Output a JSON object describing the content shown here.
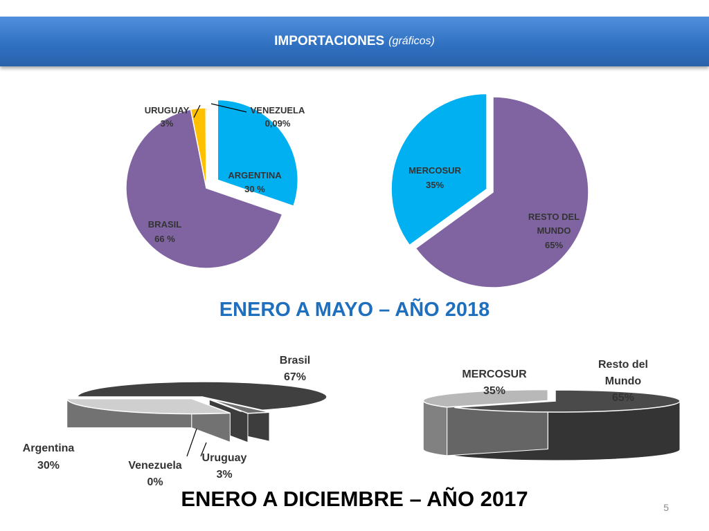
{
  "header": {
    "title": "IMPORTACIONES",
    "subtitle": "(gráficos)"
  },
  "headings": {
    "period_2018": "ENERO A MAYO – AÑO 2018",
    "period_2017": "ENERO A DICIEMBRE – AÑO 2017"
  },
  "page_number": "5",
  "chart_data": [
    {
      "type": "pie",
      "period": "2018",
      "slices": [
        {
          "name": "ARGENTINA",
          "label": "30 %",
          "value": 30,
          "color": "#00b0f0",
          "exploded": true
        },
        {
          "name": "BRASIL",
          "label": "66 %",
          "value": 66,
          "color": "#8064a2",
          "exploded": false
        },
        {
          "name": "URUGUAY",
          "label": "3%",
          "value": 3,
          "color": "#ffc000",
          "exploded": false
        },
        {
          "name": "VENEZUELA",
          "label": "0,09%",
          "value": 0.09,
          "color": "#c0392b",
          "exploded": false
        }
      ]
    },
    {
      "type": "pie",
      "period": "2018",
      "slices": [
        {
          "name": "RESTO DEL MUNDO",
          "label": "65%",
          "value": 65,
          "color": "#8064a2",
          "exploded": false
        },
        {
          "name": "MERCOSUR",
          "label": "35%",
          "value": 35,
          "color": "#00b0f0",
          "exploded": true
        }
      ]
    },
    {
      "type": "pie",
      "style": "3d",
      "period": "2017",
      "slices": [
        {
          "name": "Brasil",
          "label": "67%",
          "value": 67,
          "color": "#404040",
          "exploded": false
        },
        {
          "name": "Uruguay",
          "label": "3%",
          "value": 3,
          "color": "#6e6e6e",
          "exploded": true
        },
        {
          "name": "Venezuela",
          "label": "0%",
          "value": 0,
          "color": "#5a5a5a",
          "exploded": false
        },
        {
          "name": "Argentina",
          "label": "30%",
          "value": 30,
          "color": "#cfcfcf",
          "exploded": true
        }
      ]
    },
    {
      "type": "pie",
      "style": "3d",
      "period": "2017",
      "slices": [
        {
          "name": "Resto del Mundo",
          "label": "65%",
          "value": 65,
          "color": "#4a4a4a",
          "exploded": false
        },
        {
          "name": "MERCOSUR",
          "label": "35%",
          "value": 35,
          "color": "#b8b8b8",
          "exploded": true
        }
      ]
    }
  ]
}
